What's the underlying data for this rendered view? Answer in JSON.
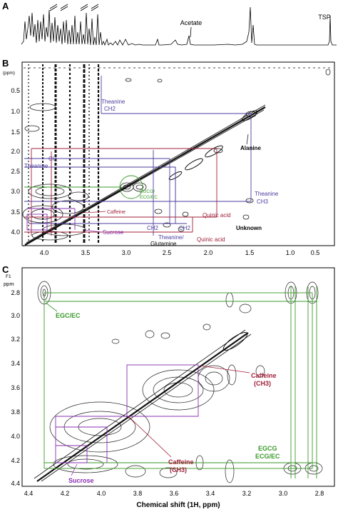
{
  "figure": {
    "panel_a": {
      "letter": "A",
      "labels": {
        "acetate": "Acetate",
        "tsp": "TSP"
      }
    },
    "panel_b": {
      "letter": "B",
      "axis_unit": "(ppm)",
      "y_ticks": [
        "0.5",
        "1.0",
        "1.5",
        "2.0",
        "2.5",
        "3.0",
        "3.5",
        "4.0"
      ],
      "x_ticks": [
        "4.0",
        "3.5",
        "3.0",
        "2.5",
        "2.0",
        "1.5",
        "1.0",
        "0.5"
      ],
      "annotations": {
        "theanine_ch2_top": "Theanine",
        "theanine_ch2_bottom": "CH2",
        "alanine": "Alanine",
        "ch": "CH",
        "theanine_left": "Theanine",
        "egcg_1": "EGCG/",
        "egcg_2": "ECG/EC",
        "theanine_ch3_top": "Theanine",
        "theanine_ch3_bottom": "CH3",
        "caffeine": "Caffeine",
        "quinic_acid_1": "Quinic acid",
        "unknown": "Unknown",
        "sucrose": "Sucrose",
        "ch2_a": "CH2",
        "ch2_b": "CH2",
        "theanine_glu_1": "Theanine/",
        "theanine_glu_2": "Glutamine",
        "quinic_acid_2": "Quinic acid"
      }
    },
    "panel_c": {
      "letter": "C",
      "f1_label": "F1",
      "ppm_label": "ppm",
      "y_ticks": [
        "2.8",
        "3.0",
        "3.2",
        "3.4",
        "3.6",
        "3.8",
        "4.0",
        "4.2",
        "4.4"
      ],
      "x_ticks": [
        "4.4",
        "4.2",
        "4.0",
        "3.8",
        "3.6",
        "3.4",
        "3.2",
        "3.0",
        "2.8"
      ],
      "x_axis_title": "Chemical shift (1H, ppm)",
      "annotations": {
        "egc_ec": "EGC/EC",
        "caffeine_right_1": "Caffeine",
        "caffeine_right_2": "(CH3)",
        "caffeine_bottom_1": "Caffeine",
        "caffeine_bottom_2": "(CH3)",
        "egcg_1": "EGCG",
        "egcg_2": "ECG/EC",
        "sucrose": "Sucrose"
      }
    },
    "colors": {
      "blue": "#4b3d9e",
      "red": "#a0203a",
      "green": "#3a9a2a",
      "purple": "#8a2fb0",
      "contour": "#222222"
    }
  }
}
